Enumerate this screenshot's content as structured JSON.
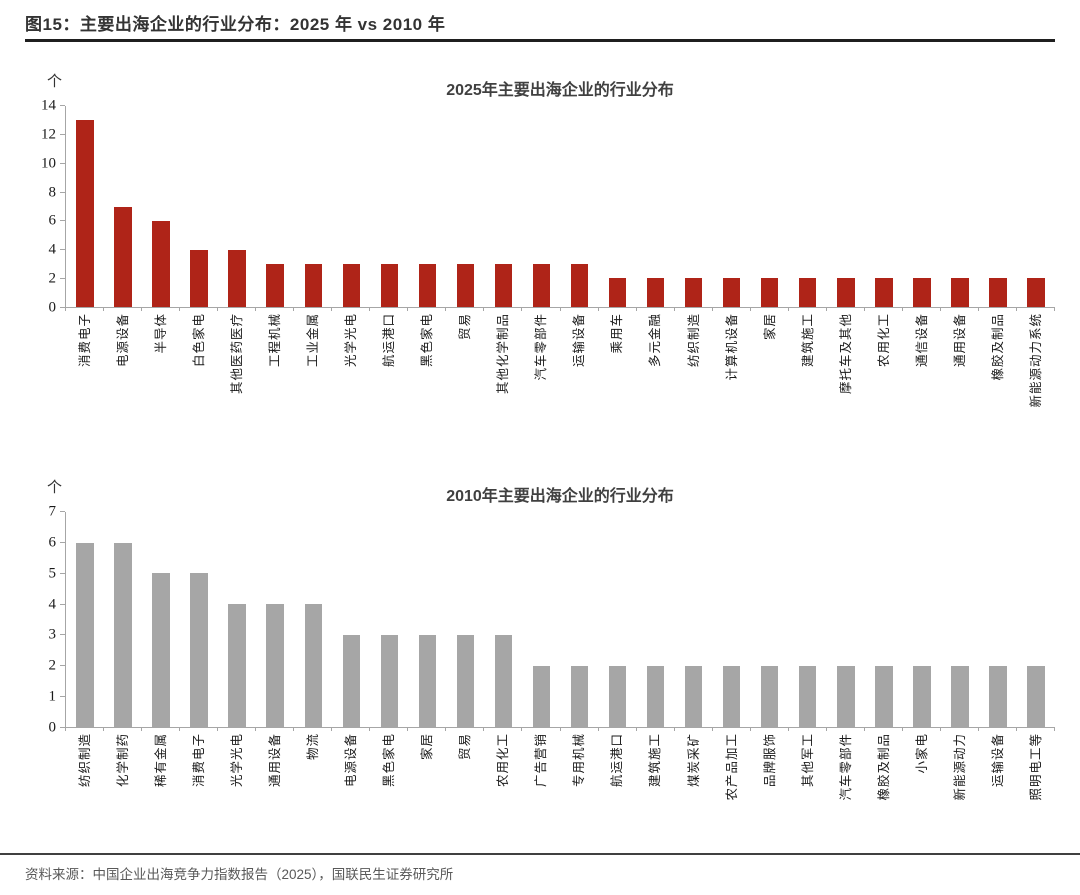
{
  "header": {
    "title": "图15：主要出海企业的行业分布：2025 年 vs 2010 年"
  },
  "footer": {
    "source": "资料来源：中国企业出海竞争力指数报告（2025），国联民生证券研究所"
  },
  "colors": {
    "bar_2025": "#af2418",
    "bar_2010": "#a6a6a6",
    "axis": "#a6a6a6"
  },
  "chart_data": [
    {
      "type": "bar",
      "title": "2025年主要出海企业的行业分布",
      "unit_label": "个",
      "bar_color": "#af2418",
      "ylim": [
        0,
        14
      ],
      "yticks": [
        0,
        2,
        4,
        6,
        8,
        10,
        12,
        14
      ],
      "grid": false,
      "legend": "none",
      "categories": [
        "消费电子",
        "电源设备",
        "半导体",
        "白色家电",
        "其他医药医疗",
        "工程机械",
        "工业金属",
        "光学光电",
        "航运港口",
        "黑色家电",
        "贸易",
        "其他化学制品",
        "汽车零部件",
        "运输设备",
        "乘用车",
        "多元金融",
        "纺织制造",
        "计算机设备",
        "家居",
        "建筑施工",
        "摩托车及其他",
        "农用化工",
        "通信设备",
        "通用设备",
        "橡胶及制品",
        "新能源动力系统"
      ],
      "values": [
        13,
        7,
        6,
        4,
        4,
        3,
        3,
        3,
        3,
        3,
        3,
        3,
        3,
        3,
        2,
        2,
        2,
        2,
        2,
        2,
        2,
        2,
        2,
        2,
        2,
        2
      ]
    },
    {
      "type": "bar",
      "title": "2010年主要出海企业的行业分布",
      "unit_label": "个",
      "bar_color": "#a6a6a6",
      "ylim": [
        0,
        7
      ],
      "yticks": [
        0,
        1,
        2,
        3,
        4,
        5,
        6,
        7
      ],
      "grid": false,
      "legend": "none",
      "categories": [
        "纺织制造",
        "化学制药",
        "稀有金属",
        "消费电子",
        "光学光电",
        "通用设备",
        "物流",
        "电源设备",
        "黑色家电",
        "家居",
        "贸易",
        "农用化工",
        "广告营销",
        "专用机械",
        "航运港口",
        "建筑施工",
        "煤炭采矿",
        "农产品加工",
        "品牌服饰",
        "其他军工",
        "汽车零部件",
        "橡胶及制品",
        "小家电",
        "新能源动力",
        "运输设备",
        "照明电工等"
      ],
      "values": [
        6,
        6,
        5,
        5,
        4,
        4,
        4,
        3,
        3,
        3,
        3,
        3,
        2,
        2,
        2,
        2,
        2,
        2,
        2,
        2,
        2,
        2,
        2,
        2,
        2,
        2
      ]
    }
  ]
}
